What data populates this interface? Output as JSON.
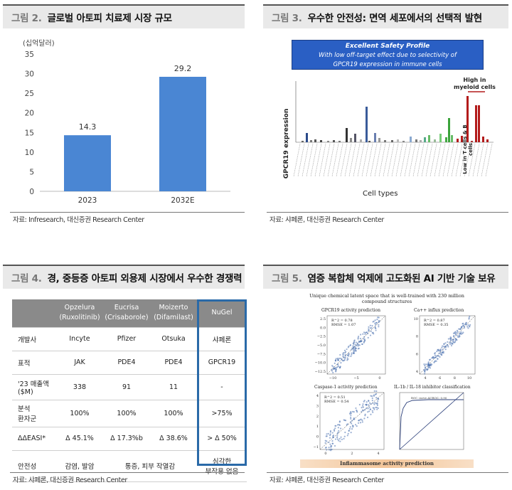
{
  "fig2": {
    "num": "그림 2.",
    "title": "글로벌 아토피 치료제 시장 규모",
    "source": "자료: Infresearch, 대신증권 Research Center",
    "chart_data": {
      "type": "bar",
      "ylabel": "(십억달러)",
      "categories": [
        "2023",
        "2032E"
      ],
      "values": [
        14.3,
        29.2
      ],
      "value_labels": [
        "14.3",
        "29.2"
      ],
      "ylim": [
        0,
        35
      ],
      "yticks": [
        0,
        5,
        10,
        15,
        20,
        25,
        30,
        35
      ],
      "bar_color": "#4a86d3",
      "grid": false
    }
  },
  "fig3": {
    "num": "그림 3.",
    "title": "우수한 안전성: 면역 세포에서의 선택적 발현",
    "source": "자료: 샤페론, 대신증권 Research Center",
    "banner_line1": "Excellent Safety Profile",
    "banner_line2": "With low off-target effect due to selectivity of",
    "banner_line3": "GPCR19 expression in immune cells",
    "ylabel": "GPCR19 expression",
    "xlabel": "Cell types",
    "annot_high_1": "High in",
    "annot_high_2": "myeloid cells",
    "annot_low": "Low in T cells & B cells",
    "colors": {
      "banner": "#2a5fc4",
      "high": "#b31b1b",
      "low": "#3aa33a"
    }
  },
  "fig4": {
    "num": "그림 4.",
    "title": "경, 중등증 아토피 외용제 시장에서 우수한 경쟁력",
    "source": "자료: 샤페론, 대신증권 Research Center",
    "columns": [
      {
        "name": "Opzelura",
        "sub": "(Ruxolitinib)"
      },
      {
        "name": "Eucrisa",
        "sub": "(Crisaborole)"
      },
      {
        "name": "Moizerto",
        "sub": "(Difamilast)"
      },
      {
        "name": "NuGel",
        "sub": ""
      }
    ],
    "rows": {
      "maker": {
        "label": "개발사",
        "cells": [
          "Incyte",
          "Pfizer",
          "Otsuka",
          "샤페론"
        ]
      },
      "target": {
        "label": "표적",
        "cells": [
          "JAK",
          "PDE4",
          "PDE4",
          "GPCR19"
        ]
      },
      "sales": {
        "label1": "'23 매출액",
        "label2": "($M)",
        "cells": [
          "338",
          "91",
          "11",
          "-"
        ]
      },
      "patients": {
        "label1": "분석",
        "label2": "환자군",
        "cells": [
          "100%",
          "100%",
          "100%",
          ">75%"
        ]
      },
      "easi": {
        "label": "ΔΔEASI*",
        "cells": [
          "Δ 45.1%",
          "Δ 17.3%b",
          "Δ 38.6%",
          ">  Δ 50%"
        ]
      },
      "safety": {
        "label": "안전성",
        "cells": [
          "감염, 발암",
          "통증, 피부 작열감",
          "심각한",
          "부작용 없음"
        ]
      }
    }
  },
  "fig5": {
    "num": "그림 5.",
    "title": "염증 복합체 억제에 고도화된 AI 기반 기술 보유",
    "source": "자료: 샤페론, 대신증권 Research Center",
    "top_caption_1": "Unique chemical latent space that is well-trained with 230 million",
    "top_caption_2": "compound structures",
    "sub1": {
      "title": "GPCR19 activity prediction",
      "r2": "R^2 = 0.78",
      "rmse": "RMSE = 1.07",
      "yticks": [
        "2.5",
        "0.0",
        "−2.5",
        "−5.0",
        "−7.5",
        "−10.0",
        "−12.5"
      ],
      "xticks": [
        "−10",
        "−5",
        "0"
      ]
    },
    "sub2": {
      "title": "Ca++ influx prediction",
      "r2": "R^2 = 0.87",
      "rmse": "RMSE = 0.35",
      "yticks": [
        "10",
        "8",
        "6",
        "4"
      ],
      "xticks": [
        "4",
        "6",
        "8",
        "10"
      ]
    },
    "sub3": {
      "title": "Caspase-1 activity prediction",
      "r2": "R^2 = 0.51",
      "rmse": "RMSE = 0.54",
      "yticks": [
        "4",
        "3",
        "2",
        "1",
        "0",
        "−1"
      ],
      "xticks": [
        "0",
        "2",
        "4"
      ]
    },
    "sub4": {
      "title": "IL-1b / IL-18 inhibitor classification",
      "legend": "ROC curve AUROC: 0.90"
    },
    "bottom_caption": "Inflammasome activity prediction"
  }
}
